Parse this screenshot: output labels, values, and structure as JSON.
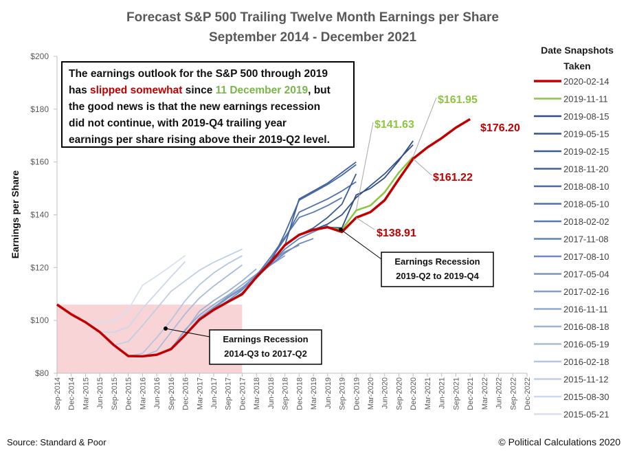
{
  "chart_data": {
    "type": "line",
    "title": "Forecast S&P 500 Trailing Twelve Month Earnings per Share",
    "subtitle": "September 2014 - December 2021",
    "y_label": "Earnings per Share",
    "legend_title": "Date Snapshots Taken",
    "legend_position": "right",
    "grid": false,
    "source": "Source: Standard  & Poor",
    "credit": "© Political Calculations 2020",
    "categories": [
      "Sep-2014",
      "Dec-2014",
      "Mar-2015",
      "Jun-2015",
      "Sep-2015",
      "Dec-2015",
      "Mar-2016",
      "Jun-2016",
      "Sep-2016",
      "Dec-2016",
      "Mar-2017",
      "Jun-2017",
      "Sep-2017",
      "Dec-2017",
      "Mar-2018",
      "Jun-2018",
      "Sep-2018",
      "Dec-2018",
      "Mar-2019",
      "Jun-2019",
      "Sep-2019",
      "Dec-2019",
      "Mar-2020",
      "Jun-2020",
      "Sep-2020",
      "Dec-2020",
      "Mar-2021",
      "Jun-2021",
      "Sep-2021",
      "Dec-2021",
      "Mar-2022",
      "Jun-2022",
      "Sep-2022",
      "Dec-2022"
    ],
    "ylim": [
      80,
      200
    ],
    "yticks": [
      {
        "value": 80,
        "label": "$80"
      },
      {
        "value": 100,
        "label": "$100"
      },
      {
        "value": 120,
        "label": "$120"
      },
      {
        "value": 140,
        "label": "$140"
      },
      {
        "value": 160,
        "label": "$160"
      },
      {
        "value": 180,
        "label": "$180"
      },
      {
        "value": 200,
        "label": "$200"
      }
    ],
    "shade": {
      "x": [
        "Sep-2014",
        "Dec-2017"
      ],
      "y": 106,
      "color": "#f8cdd0"
    },
    "note": [
      [
        "The earnings outlook for the S&P 500 through 2019"
      ],
      [
        "has ",
        {
          "text": "slipped somewhat",
          "color": "#c00000"
        },
        " since ",
        {
          "text": "11 December 2019",
          "color": "#7ab648"
        },
        ", but"
      ],
      [
        "the good news is that the new earnings recession"
      ],
      [
        "did not continue, with 2019-Q4 trailing year"
      ],
      [
        "earnings per share rising above their 2019-Q2 level."
      ]
    ],
    "recessions": [
      {
        "lines": [
          "Earnings Recession",
          "2014-Q3 to 2017-Q2"
        ]
      },
      {
        "lines": [
          "Earnings Recession",
          "2019-Q2 to 2019-Q4"
        ]
      }
    ],
    "series": [
      {
        "name": "2020-02-14",
        "color": "#c00000",
        "values": [
          106.0,
          102.3,
          99.3,
          95.6,
          90.6,
          86.5,
          86.4,
          87.0,
          89.1,
          94.5,
          100.3,
          104.0,
          107.0,
          109.9,
          116.4,
          122.0,
          128.5,
          132.4,
          134.3,
          135.3,
          133.5,
          138.91,
          141.0,
          145.5,
          153.5,
          161.22,
          165.5,
          169.0,
          173.0,
          176.2,
          null,
          null,
          null,
          null
        ],
        "value_labels": [
          null,
          null,
          null,
          null,
          null,
          null,
          null,
          null,
          null,
          null,
          null,
          null,
          null,
          null,
          null,
          null,
          null,
          null,
          null,
          null,
          null,
          "$138.91",
          null,
          null,
          null,
          "$161.22",
          null,
          null,
          null,
          "$176.20",
          null,
          null,
          null,
          null
        ]
      },
      {
        "name": "2019-11-11",
        "color": "#8cc63f",
        "values": [
          106.0,
          102.3,
          99.3,
          95.6,
          90.6,
          86.5,
          86.4,
          87.0,
          89.1,
          94.5,
          100.3,
          104.0,
          107.0,
          109.9,
          116.4,
          122.0,
          128.5,
          132.4,
          134.3,
          135.3,
          134.3,
          141.63,
          143.5,
          148.5,
          156.0,
          161.95,
          null,
          null,
          null,
          null,
          null,
          null,
          null,
          null
        ],
        "value_labels": [
          null,
          null,
          null,
          null,
          null,
          null,
          null,
          null,
          null,
          null,
          null,
          null,
          null,
          null,
          null,
          null,
          null,
          null,
          null,
          null,
          null,
          "$141.63",
          null,
          null,
          null,
          "$161.95",
          null,
          null,
          null,
          null,
          null,
          null,
          null,
          null
        ]
      },
      {
        "name": "2019-08-15",
        "color": "#2f4d84",
        "values": [
          106.0,
          102.3,
          99.3,
          95.6,
          90.6,
          86.5,
          86.4,
          87.0,
          89.1,
          94.5,
          100.3,
          104.0,
          107.0,
          109.9,
          116.4,
          122.0,
          128.5,
          132.4,
          134.3,
          135.3,
          135.0,
          147.5,
          150.0,
          154.0,
          160.5,
          168.0,
          null,
          null,
          null,
          null,
          null,
          null,
          null,
          null
        ]
      },
      {
        "name": "2019-05-15",
        "color": "#34548d",
        "values": [
          106.0,
          102.3,
          99.3,
          95.6,
          90.6,
          86.5,
          86.4,
          87.0,
          89.1,
          94.5,
          100.3,
          104.0,
          107.0,
          109.9,
          116.4,
          122.0,
          128.5,
          132.4,
          134.3,
          136.5,
          140.0,
          146.5,
          151.0,
          155.5,
          161.0,
          166.5,
          null,
          null,
          null,
          null,
          null,
          null,
          null,
          null
        ]
      },
      {
        "name": "2019-02-15",
        "color": "#3a5b95",
        "values": [
          106.0,
          102.3,
          99.3,
          95.6,
          90.6,
          86.5,
          86.4,
          87.0,
          89.1,
          94.5,
          100.3,
          104.0,
          107.0,
          109.9,
          116.4,
          122.0,
          128.5,
          132.4,
          135.0,
          139.0,
          144.0,
          155.5,
          null,
          null,
          null,
          null,
          null,
          null,
          null,
          null,
          null,
          null,
          null,
          null
        ]
      },
      {
        "name": "2018-11-20",
        "color": "#40629c",
        "values": [
          106.0,
          102.3,
          99.3,
          95.6,
          90.6,
          86.5,
          86.4,
          87.0,
          89.1,
          94.5,
          100.3,
          104.0,
          107.0,
          109.9,
          116.4,
          122.0,
          128.5,
          146.0,
          149.0,
          152.0,
          156.0,
          160.0,
          null,
          null,
          null,
          null,
          null,
          null,
          null,
          null,
          null,
          null,
          null,
          null
        ]
      },
      {
        "name": "2018-08-10",
        "color": "#4769a3",
        "values": [
          106.0,
          102.3,
          99.3,
          95.6,
          90.6,
          86.5,
          86.4,
          87.0,
          89.1,
          94.5,
          100.3,
          104.0,
          107.0,
          109.9,
          116.4,
          122.0,
          133.0,
          145.5,
          148.5,
          151.5,
          155.0,
          159.0,
          null,
          null,
          null,
          null,
          null,
          null,
          null,
          null,
          null,
          null,
          null,
          null
        ]
      },
      {
        "name": "2018-05-10",
        "color": "#4f70aa",
        "values": [
          106.0,
          102.3,
          99.3,
          95.6,
          90.6,
          86.5,
          86.4,
          87.0,
          89.1,
          94.5,
          100.3,
          104.0,
          107.0,
          109.9,
          116.4,
          123.0,
          131.0,
          141.0,
          143.5,
          146.0,
          149.0,
          152.5,
          null,
          null,
          null,
          null,
          null,
          null,
          null,
          null,
          null,
          null,
          null,
          null
        ]
      },
      {
        "name": "2018-02-02",
        "color": "#5878b0",
        "values": [
          106.0,
          102.3,
          99.3,
          95.6,
          90.6,
          86.5,
          86.4,
          87.0,
          89.1,
          94.5,
          100.3,
          104.0,
          107.0,
          109.9,
          117.0,
          124.0,
          131.5,
          139.0,
          141.0,
          143.5,
          146.5,
          null,
          null,
          null,
          null,
          null,
          null,
          null,
          null,
          null,
          null,
          null,
          null,
          null
        ]
      },
      {
        "name": "2017-11-08",
        "color": "#6281b6",
        "values": [
          106.0,
          102.3,
          99.3,
          95.6,
          90.6,
          86.5,
          86.4,
          87.0,
          89.1,
          94.5,
          100.3,
          104.0,
          107.0,
          110.5,
          116.0,
          121.5,
          127.0,
          131.0,
          133.5,
          136.0,
          null,
          null,
          null,
          null,
          null,
          null,
          null,
          null,
          null,
          null,
          null,
          null,
          null,
          null
        ]
      },
      {
        "name": "2017-08-10",
        "color": "#6d8abc",
        "values": [
          106.0,
          102.3,
          99.3,
          95.6,
          90.6,
          86.5,
          86.4,
          87.0,
          89.1,
          94.5,
          100.3,
          104.0,
          107.5,
          111.5,
          116.5,
          121.0,
          125.5,
          129.0,
          131.0,
          null,
          null,
          null,
          null,
          null,
          null,
          null,
          null,
          null,
          null,
          null,
          null,
          null,
          null,
          null
        ]
      },
      {
        "name": "2017-05-04",
        "color": "#7894c2",
        "values": [
          106.0,
          102.3,
          99.3,
          95.6,
          90.6,
          86.5,
          86.4,
          87.0,
          89.1,
          94.5,
          100.3,
          104.5,
          108.5,
          112.0,
          117.5,
          122.0,
          126.0,
          128.5,
          null,
          null,
          null,
          null,
          null,
          null,
          null,
          null,
          null,
          null,
          null,
          null,
          null,
          null,
          null,
          null
        ]
      },
      {
        "name": "2017-02-16",
        "color": "#849ec8",
        "values": [
          106.0,
          102.3,
          99.3,
          95.6,
          90.6,
          86.5,
          86.4,
          87.0,
          89.1,
          94.5,
          101.0,
          105.0,
          109.0,
          112.5,
          117.0,
          121.0,
          124.5,
          null,
          null,
          null,
          null,
          null,
          null,
          null,
          null,
          null,
          null,
          null,
          null,
          null,
          null,
          null,
          null,
          null
        ]
      },
      {
        "name": "2016-11-11",
        "color": "#90a8ce",
        "values": [
          106.0,
          102.3,
          99.3,
          95.6,
          90.6,
          86.5,
          86.4,
          87.0,
          89.1,
          96.5,
          102.0,
          106.0,
          109.5,
          113.5,
          117.5,
          null,
          null,
          null,
          null,
          null,
          null,
          null,
          null,
          null,
          null,
          null,
          null,
          null,
          null,
          null,
          null,
          null,
          null,
          null
        ]
      },
      {
        "name": "2016-08-18",
        "color": "#9cb2d4",
        "values": [
          106.0,
          102.3,
          99.3,
          95.6,
          90.6,
          86.5,
          86.4,
          87.0,
          89.5,
          96.0,
          103.5,
          107.5,
          111.0,
          115.0,
          119.5,
          null,
          null,
          null,
          null,
          null,
          null,
          null,
          null,
          null,
          null,
          null,
          null,
          null,
          null,
          null,
          null,
          null,
          null,
          null
        ]
      },
      {
        "name": "2016-05-19",
        "color": "#a8bcda",
        "values": [
          106.0,
          102.3,
          99.3,
          95.6,
          90.6,
          86.5,
          86.4,
          88.5,
          95.5,
          102.5,
          108.5,
          113.0,
          117.0,
          121.0,
          null,
          null,
          null,
          null,
          null,
          null,
          null,
          null,
          null,
          null,
          null,
          null,
          null,
          null,
          null,
          null,
          null,
          null,
          null,
          null
        ]
      },
      {
        "name": "2016-02-18",
        "color": "#b4c5df",
        "values": [
          106.0,
          102.3,
          99.3,
          95.6,
          90.6,
          86.5,
          87.5,
          93.5,
          100.0,
          107.5,
          113.5,
          118.0,
          121.5,
          124.5,
          null,
          null,
          null,
          null,
          null,
          null,
          null,
          null,
          null,
          null,
          null,
          null,
          null,
          null,
          null,
          null,
          null,
          null,
          null,
          null
        ]
      },
      {
        "name": "2015-11-12",
        "color": "#c0cee4",
        "values": [
          106.0,
          102.3,
          99.3,
          95.6,
          90.6,
          92.0,
          98.0,
          104.5,
          111.0,
          115.0,
          119.0,
          122.0,
          124.5,
          127.0,
          null,
          null,
          null,
          null,
          null,
          null,
          null,
          null,
          null,
          null,
          null,
          null,
          null,
          null,
          null,
          null,
          null,
          null,
          null,
          null
        ]
      },
      {
        "name": "2015-08-30",
        "color": "#ccd7e9",
        "values": [
          106.0,
          102.3,
          99.3,
          95.6,
          95.5,
          97.5,
          104.5,
          110.5,
          116.5,
          122.3,
          null,
          null,
          null,
          null,
          null,
          null,
          null,
          null,
          null,
          null,
          null,
          null,
          null,
          null,
          null,
          null,
          null,
          null,
          null,
          null,
          null,
          null,
          null,
          null
        ]
      },
      {
        "name": "2015-05-21",
        "color": "#d8e0ee",
        "values": [
          106.0,
          102.3,
          99.3,
          99.4,
          99.6,
          104.0,
          113.3,
          116.8,
          120.6,
          124.6,
          null,
          null,
          null,
          null,
          null,
          null,
          null,
          null,
          null,
          null,
          null,
          null,
          null,
          null,
          null,
          null,
          null,
          null,
          null,
          null,
          null,
          null,
          null,
          null
        ]
      }
    ]
  }
}
